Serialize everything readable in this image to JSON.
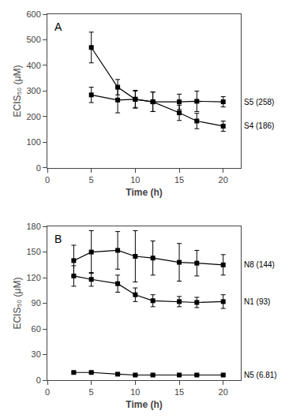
{
  "chart_data": [
    {
      "type": "line",
      "annotations": [
        "A"
      ],
      "xlabel": "Time (h)",
      "ylabel": "ECIS₅₀ (μM)",
      "x": [
        5,
        8,
        10,
        12,
        15,
        17,
        20
      ],
      "series": [
        {
          "name": "S5 (258)",
          "values": [
            285,
            265,
            268,
            258,
            258,
            260,
            258
          ],
          "yerr": [
            30,
            50,
            32,
            38,
            30,
            40,
            20
          ]
        },
        {
          "name": "S4 (186)",
          "values": [
            470,
            315,
            268,
            258,
            215,
            183,
            163
          ],
          "yerr": [
            60,
            30,
            35,
            38,
            30,
            30,
            20
          ]
        }
      ],
      "xlim": [
        0,
        22
      ],
      "xticks": [
        0,
        5,
        10,
        15,
        20
      ],
      "ylim": [
        0,
        600
      ],
      "yticks": [
        0,
        100,
        200,
        300,
        400,
        500,
        600
      ],
      "color": "black",
      "marker": "square",
      "line_style": "solid",
      "grid": false
    },
    {
      "type": "line",
      "annotations": [
        "B"
      ],
      "xlabel": "Time (h)",
      "ylabel": "ECIS₅₀ (μM)",
      "x": [
        3,
        5,
        8,
        10,
        12,
        15,
        17,
        20
      ],
      "series": [
        {
          "name": "N8 (144)",
          "values": [
            140,
            150,
            152,
            145,
            143,
            138,
            137,
            135
          ],
          "yerr": [
            18,
            25,
            22,
            30,
            20,
            22,
            15,
            12
          ]
        },
        {
          "name": "N1 (93)",
          "values": [
            122,
            118,
            113,
            100,
            93,
            92,
            91,
            92
          ],
          "yerr": [
            12,
            8,
            10,
            8,
            7,
            6,
            6,
            8
          ]
        },
        {
          "name": "N5 (6.81)",
          "values": [
            9,
            9,
            7,
            6,
            6,
            6,
            6,
            6
          ],
          "yerr": [
            1,
            1,
            1,
            1,
            1,
            1,
            1,
            1
          ]
        }
      ],
      "xlim": [
        0,
        22
      ],
      "xticks": [
        0,
        5,
        10,
        15,
        20
      ],
      "ylim": [
        0,
        180
      ],
      "yticks": [
        0,
        30,
        60,
        90,
        120,
        150,
        180
      ],
      "color": "black",
      "marker": "square",
      "line_style": "solid",
      "grid": false
    }
  ]
}
